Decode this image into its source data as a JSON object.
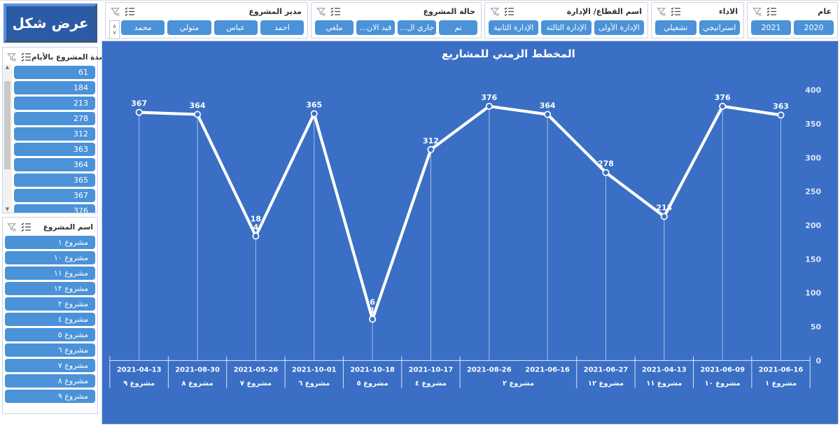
{
  "filters": [
    {
      "title": "مدير المشروع",
      "items": [
        "احمد",
        "عباس",
        "متولي",
        "محمد"
      ]
    },
    {
      "title": "حالة المشروع",
      "items": [
        "تم",
        "جاري ال...",
        "قيد الان...",
        "ملغي"
      ]
    },
    {
      "title": "اسم القطاع/ الإدارة",
      "items": [
        "الإدارة الأولى",
        "الإدارة الثالثة",
        "الإدارة الثانية"
      ]
    },
    {
      "title": "الاداء",
      "items": [
        "استراتيجي",
        "تشغيلي"
      ]
    },
    {
      "title": "عام",
      "items": [
        "2020",
        "2021"
      ]
    }
  ],
  "sidebar": {
    "show_button_label": "عرض شكل",
    "duration_slicer": {
      "title": "مدة المشروع بالأيام",
      "items": [
        "61",
        "184",
        "213",
        "278",
        "312",
        "363",
        "364",
        "365",
        "367",
        "376"
      ]
    },
    "project_slicer": {
      "title": "اسم المشروع",
      "items": [
        "مشروع ١",
        "مشروع ١٠",
        "مشروع ١١",
        "مشروع ١٢",
        "مشروع ٢",
        "مشروع ٤",
        "مشروع ٥",
        "مشروع ٦",
        "مشروع ٧",
        "مشروع ٨",
        "مشروع ٩"
      ]
    }
  },
  "chart_data": {
    "type": "line",
    "title": "المخطط الزمني للمشاريع",
    "points": [
      {
        "date": "2021-04-13",
        "project": "مشروع ٩",
        "value": 367
      },
      {
        "date": "2021-08-30",
        "project": "مشروع ٨",
        "value": 364
      },
      {
        "date": "2021-05-26",
        "project": "مشروع ٧",
        "value": 184
      },
      {
        "date": "2021-10-01",
        "project": "مشروع ٦",
        "value": 365
      },
      {
        "date": "2021-10-18",
        "project": "مشروع ٥",
        "value": 61
      },
      {
        "date": "2021-10-17",
        "project": "مشروع ٤",
        "value": 312
      },
      {
        "date": "2021-08-26",
        "project": "مشروع ٢",
        "value": 376
      },
      {
        "date": "2021-06-16",
        "project": "مشروع ٢",
        "value": 364
      },
      {
        "date": "2021-06-27",
        "project": "مشروع ١٢",
        "value": 278
      },
      {
        "date": "2021-04-13",
        "project": "مشروع ١١",
        "value": 213
      },
      {
        "date": "2021-06-09",
        "project": "مشروع ١٠",
        "value": 376
      },
      {
        "date": "2021-06-16",
        "project": "مشروع ١",
        "value": 363
      }
    ],
    "y_ticks": [
      0,
      50,
      100,
      150,
      200,
      250,
      300,
      350,
      400
    ],
    "ylim": [
      0,
      400
    ],
    "grid": false,
    "legend": "none",
    "line_color": "#ffffff",
    "background": "#3a6fc5"
  },
  "colors": {
    "slicer_button_blue": "#4b92d8",
    "chart_background_blue": "#3a6fc5",
    "show_button_blue": "#2c5ba6"
  }
}
